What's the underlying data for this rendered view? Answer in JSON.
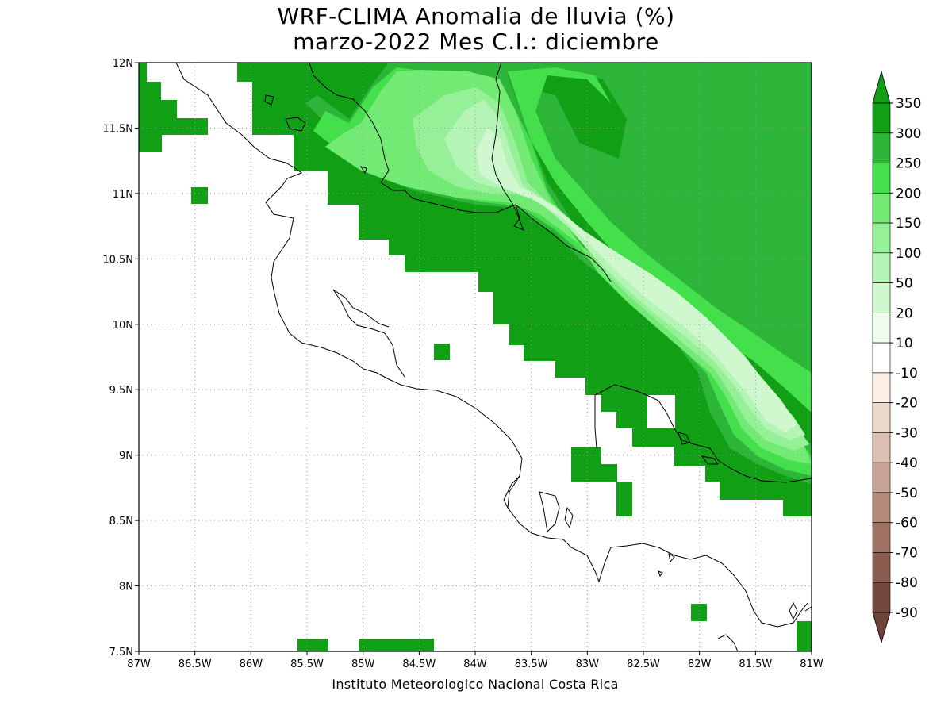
{
  "title": {
    "line1": "WRF-CLIMA Anomalia de lluvia (%)",
    "line2": "marzo-2022 Mes C.I.: diciembre"
  },
  "credit": "Instituto Meteorologico Nacional Costa Rica",
  "map": {
    "lon_range": [
      -87,
      -81
    ],
    "lat_range": [
      7.5,
      12
    ],
    "x_ticks": [
      "87W",
      "86.5W",
      "86W",
      "85.5W",
      "85W",
      "84.5W",
      "84W",
      "83.5W",
      "83W",
      "82.5W",
      "82W",
      "81.5W",
      "81W"
    ],
    "y_ticks": [
      "7.5N",
      "8N",
      "8.5N",
      "9N",
      "9.5N",
      "10N",
      "10.5N",
      "11N",
      "11.5N",
      "12N"
    ],
    "gridlines": true
  },
  "colorbar": {
    "labels": [
      "350",
      "300",
      "250",
      "200",
      "150",
      "100",
      "50",
      "20",
      "10",
      "-10",
      "-20",
      "-30",
      "-40",
      "-50",
      "-60",
      "-70",
      "-80",
      "-90"
    ],
    "colors": [
      "#119f16",
      "#2db53a",
      "#44e04b",
      "#72ea74",
      "#96f097",
      "#b4f4b4",
      "#d0f8cf",
      "#edfcec",
      "#ffffff",
      "#faefe2",
      "#ecd9cc",
      "#dcc0b4",
      "#c8a596",
      "#b48a7a",
      "#a07264",
      "#8a5c50",
      "#75483d"
    ]
  },
  "legend_meaning": "Anomalia de lluvia (%)"
}
